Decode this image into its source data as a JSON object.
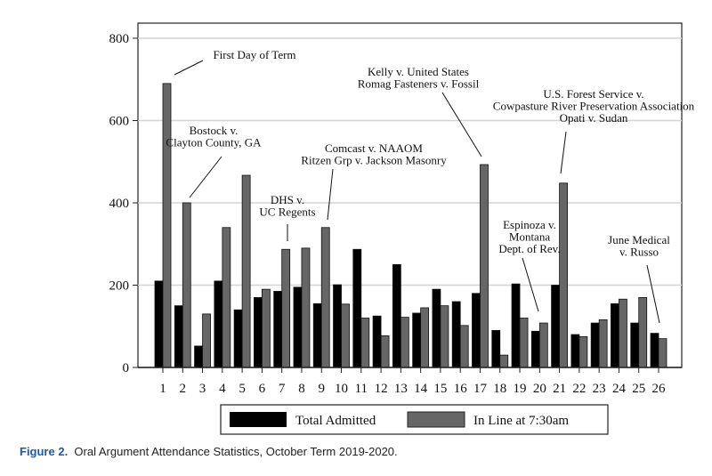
{
  "chart_data": {
    "type": "bar",
    "title": "",
    "xlabel": "",
    "ylabel": "",
    "ylim": [
      0,
      800
    ],
    "yticks": [
      "0",
      "200",
      "400",
      "600",
      "800"
    ],
    "grid": true,
    "legend_position": "bottom",
    "categories": [
      "1",
      "2",
      "3",
      "4",
      "5",
      "6",
      "7",
      "8",
      "9",
      "10",
      "11",
      "12",
      "13",
      "14",
      "15",
      "16",
      "17",
      "18",
      "19",
      "20",
      "21",
      "22",
      "23",
      "24",
      "25",
      "26"
    ],
    "series": [
      {
        "name": "Total Admitted",
        "color": "#000000",
        "values": [
          210,
          150,
          52,
          210,
          140,
          170,
          185,
          195,
          155,
          201,
          287,
          125,
          250,
          132,
          190,
          160,
          180,
          90,
          203,
          88,
          200,
          80,
          108,
          155,
          108,
          83
        ]
      },
      {
        "name": "In Line at 7:30am",
        "color": "#666666",
        "values": [
          690,
          400,
          130,
          340,
          467,
          190,
          287,
          290,
          340,
          154,
          120,
          77,
          122,
          145,
          150,
          102,
          493,
          30,
          120,
          108,
          448,
          75,
          116,
          166,
          170,
          70
        ]
      }
    ],
    "annotations": [
      {
        "category": "1",
        "lines": [
          "First Day of Term"
        ]
      },
      {
        "category": "2",
        "lines": [
          "Bostock v.",
          "Clayton County, GA"
        ]
      },
      {
        "category": "7",
        "lines": [
          "DHS v.",
          "UC Regents"
        ]
      },
      {
        "category": "9",
        "lines": [
          "Comcast v. NAAOM",
          "Ritzen Grp v. Jackson Masonry"
        ]
      },
      {
        "category": "17",
        "lines": [
          "Kelly v. United States",
          "Romag Fasteners v. Fossil"
        ]
      },
      {
        "category": "21",
        "lines": [
          "U.S. Forest Service v.",
          "Cowpasture River Preservation Association",
          "Opati v. Sudan"
        ]
      },
      {
        "category": "20",
        "lines": [
          "Espinoza v.",
          "Montana",
          "Dept. of Rev."
        ]
      },
      {
        "category": "26",
        "lines": [
          "June Medical",
          "v. Russo"
        ]
      }
    ]
  },
  "caption": {
    "label": "Figure 2.",
    "text": "Oral Argument Attendance Statistics, October Term 2019-2020."
  }
}
